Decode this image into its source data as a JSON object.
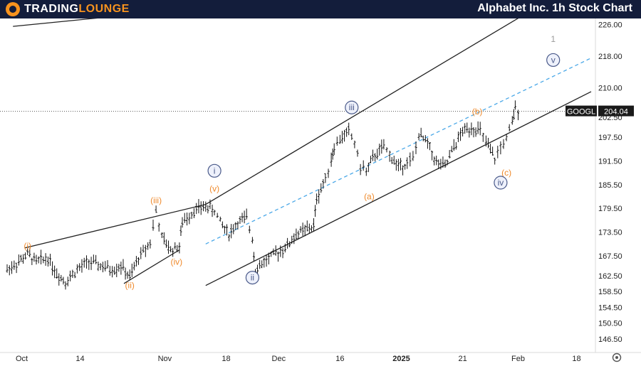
{
  "header": {
    "logo_part1": "TRADING",
    "logo_part2": "LOUNGE",
    "title": "Alphabet Inc. 1h Stock Chart"
  },
  "colors": {
    "topbar": "#131d3b",
    "accent_orange": "#f7931e",
    "wave_orange": "#ef8a2c",
    "wave_blue": "#4a5a8a",
    "channel_line": "#222222",
    "midline_dashed": "#4aa8e8",
    "candle": "#111111"
  },
  "chart_data": {
    "type": "candlestick",
    "symbol": "GOOGL",
    "last_price": "204.04",
    "ylim": [
      144.5,
      227.5
    ],
    "yticks": [
      "226.00",
      "218.00",
      "210.00",
      "202.50",
      "197.50",
      "191.50",
      "185.50",
      "179.50",
      "173.50",
      "167.50",
      "162.50",
      "158.50",
      "154.50",
      "150.50",
      "146.50"
    ],
    "xlim": [
      0,
      100
    ],
    "xticks": [
      {
        "label": "Oct",
        "x": 2.5
      },
      {
        "label": "14",
        "x": 12.5
      },
      {
        "label": "Nov",
        "x": 27
      },
      {
        "label": "18",
        "x": 37.5
      },
      {
        "label": "Dec",
        "x": 46.5
      },
      {
        "label": "16",
        "x": 57
      },
      {
        "label": "2025",
        "x": 67.5,
        "bold": true
      },
      {
        "label": "21",
        "x": 78
      },
      {
        "label": "Feb",
        "x": 87.5
      },
      {
        "label": "18",
        "x": 97.5
      }
    ],
    "price_path": [
      [
        0,
        164
      ],
      [
        2,
        166
      ],
      [
        3.5,
        168
      ],
      [
        5,
        166
      ],
      [
        7,
        167
      ],
      [
        8.5,
        163
      ],
      [
        10,
        161
      ],
      [
        12,
        164
      ],
      [
        14,
        166
      ],
      [
        16,
        165
      ],
      [
        18,
        164
      ],
      [
        19.5,
        165
      ],
      [
        21,
        162
      ],
      [
        22.5,
        167
      ],
      [
        24.5,
        171
      ],
      [
        25.5,
        179
      ],
      [
        26.5,
        172
      ],
      [
        28,
        169
      ],
      [
        29.5,
        170
      ],
      [
        30,
        176
      ],
      [
        32,
        179
      ],
      [
        34,
        180
      ],
      [
        35.5,
        179
      ],
      [
        36.5,
        176
      ],
      [
        38,
        173
      ],
      [
        39.5,
        176
      ],
      [
        41,
        177
      ],
      [
        42,
        172
      ],
      [
        42.5,
        164
      ],
      [
        44,
        166
      ],
      [
        46,
        168
      ],
      [
        48,
        170
      ],
      [
        49.5,
        173
      ],
      [
        51,
        174
      ],
      [
        52.5,
        175
      ],
      [
        53,
        182
      ],
      [
        54.5,
        187
      ],
      [
        55.5,
        192
      ],
      [
        56,
        195
      ],
      [
        57,
        197
      ],
      [
        58.5,
        199
      ],
      [
        59.5,
        196
      ],
      [
        60.5,
        190
      ],
      [
        61.5,
        189
      ],
      [
        63,
        193
      ],
      [
        64.5,
        195
      ],
      [
        65.5,
        193
      ],
      [
        67,
        190
      ],
      [
        68.5,
        191
      ],
      [
        69.5,
        192
      ],
      [
        70.5,
        198
      ],
      [
        72,
        196
      ],
      [
        73.5,
        191
      ],
      [
        75,
        190
      ],
      [
        76.5,
        195
      ],
      [
        78,
        199
      ],
      [
        79.5,
        200
      ],
      [
        81,
        199
      ],
      [
        82,
        196
      ],
      [
        83.5,
        192
      ],
      [
        84.5,
        195
      ],
      [
        85.5,
        197
      ],
      [
        86.5,
        201
      ],
      [
        87,
        205
      ],
      [
        88,
        204
      ]
    ],
    "dotted_level": 204.04,
    "channel_lines": [
      {
        "name": "upper-channel",
        "from": [
          34,
          180.5
        ],
        "to": [
          88,
          228
        ]
      },
      {
        "name": "lower-channel",
        "from": [
          34,
          160
        ],
        "to": [
          100,
          209
        ]
      },
      {
        "name": "early-upper",
        "from": [
          3,
          169.5
        ],
        "to": [
          34,
          180.5
        ]
      },
      {
        "name": "early-lower",
        "from": [
          20,
          160.5
        ],
        "to": [
          29.5,
          169
        ]
      },
      {
        "name": "top-left-line",
        "from": [
          1,
          225.5
        ],
        "to": [
          25,
          229
        ]
      }
    ],
    "dashed_midline": {
      "from": [
        34,
        170.5
      ],
      "to": [
        100,
        217.5
      ]
    },
    "wave_labels": [
      {
        "text": "(i)",
        "x": 3.5,
        "y": 170,
        "style": "orange"
      },
      {
        "text": "(ii)",
        "x": 21,
        "y": 160,
        "style": "orange"
      },
      {
        "text": "(iii)",
        "x": 25.5,
        "y": 181.5,
        "style": "orange"
      },
      {
        "text": "(iv)",
        "x": 29,
        "y": 166,
        "style": "orange"
      },
      {
        "text": "(v)",
        "x": 35.5,
        "y": 184.5,
        "style": "orange"
      },
      {
        "text": "i",
        "x": 35.5,
        "y": 189,
        "style": "circle"
      },
      {
        "text": "ii",
        "x": 42,
        "y": 162,
        "style": "circle"
      },
      {
        "text": "iii",
        "x": 59,
        "y": 205,
        "style": "circle"
      },
      {
        "text": "(a)",
        "x": 62,
        "y": 182.5,
        "style": "orange"
      },
      {
        "text": "(b)",
        "x": 80.5,
        "y": 204,
        "style": "orange"
      },
      {
        "text": "(c)",
        "x": 85.5,
        "y": 188.5,
        "style": "orange"
      },
      {
        "text": "iv",
        "x": 84.5,
        "y": 186,
        "style": "circle"
      },
      {
        "text": "v",
        "x": 93.5,
        "y": 217,
        "style": "circle"
      },
      {
        "text": "1",
        "x": 93.5,
        "y": 222.5,
        "style": "gray"
      }
    ]
  }
}
